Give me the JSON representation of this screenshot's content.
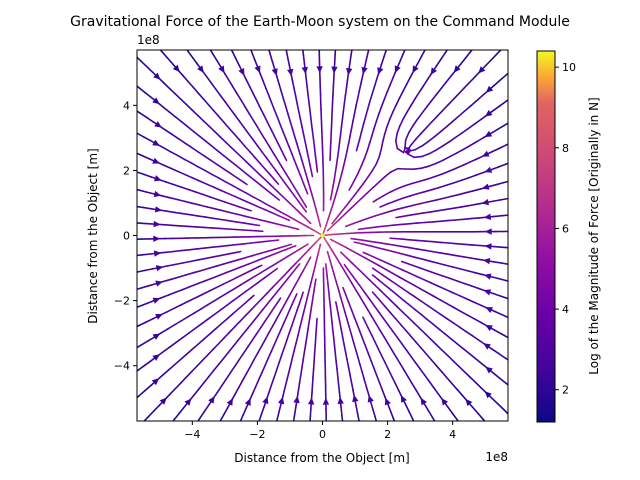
{
  "chart_data": {
    "type": "streamplot",
    "title": "Gravitational Force of the Earth-Moon system on the Command Module",
    "xlabel": "Distance from the Object [m]",
    "ylabel": "Distance from the Object [m]",
    "x_offset_label": "1e8",
    "y_offset_label": "1e8",
    "xlim": [
      -5.7,
      5.7
    ],
    "ylim": [
      -5.7,
      5.7
    ],
    "x_ticks": [
      {
        "value": -4,
        "label": "−4"
      },
      {
        "value": -2,
        "label": "−2"
      },
      {
        "value": 0,
        "label": "0"
      },
      {
        "value": 2,
        "label": "2"
      },
      {
        "value": 4,
        "label": "4"
      }
    ],
    "y_ticks": [
      {
        "value": -4,
        "label": "−4"
      },
      {
        "value": -2,
        "label": "−2"
      },
      {
        "value": 0,
        "label": "0"
      },
      {
        "value": 2,
        "label": "2"
      },
      {
        "value": 4,
        "label": "4"
      }
    ],
    "sources": [
      {
        "x": 0,
        "y": 0
      },
      {
        "x": 2.6,
        "y": 2.6
      }
    ],
    "colormap": "plasma",
    "colorbar": {
      "label": "Log of the Magnitude of Force [Originally in N]",
      "range": [
        1.2,
        10.4
      ],
      "ticks": [
        {
          "value": 2,
          "label": "2"
        },
        {
          "value": 4,
          "label": "4"
        },
        {
          "value": 6,
          "label": "6"
        },
        {
          "value": 8,
          "label": "8"
        },
        {
          "value": 10,
          "label": "10"
        }
      ]
    },
    "grid": false
  }
}
